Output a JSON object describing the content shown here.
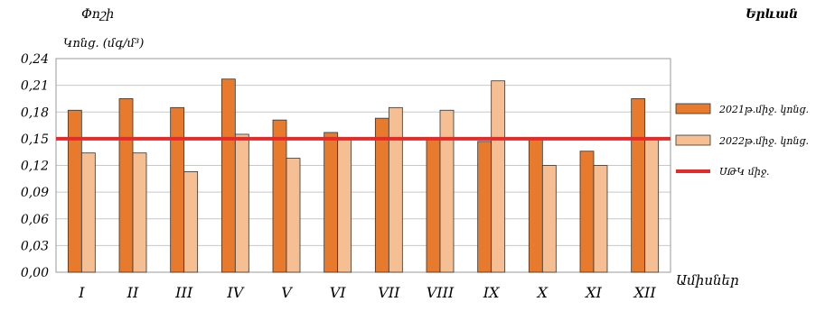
{
  "title": "Երևան",
  "ylabel_line1": "Փոշի",
  "ylabel_line2": "Կոնց. (մգ/մ³)",
  "xlabel": "Ամիսներ",
  "colors": {
    "series_2021": "#E87A2E",
    "series_2022": "#F6BE93",
    "threshold": "#E52A2A",
    "grid": "#C8C8C8"
  },
  "chart_data": {
    "type": "bar",
    "title": "Երևան",
    "xlabel": "Ամիսներ",
    "ylabel": "Փոշի Կոնց. (մգ/մ³)",
    "ylim": [
      0,
      0.24
    ],
    "yticks": [
      "0,00",
      "0,03",
      "0,06",
      "0,09",
      "0,12",
      "0,15",
      "0,18",
      "0,21",
      "0,24"
    ],
    "grid": true,
    "legend_position": "right",
    "categories": [
      "I",
      "II",
      "III",
      "IV",
      "V",
      "VI",
      "VII",
      "VIII",
      "IX",
      "X",
      "XI",
      "XII"
    ],
    "series": [
      {
        "name": "2021թ.միջ. կոնց.",
        "values": [
          0.182,
          0.195,
          0.185,
          0.217,
          0.171,
          0.157,
          0.173,
          0.15,
          0.147,
          0.15,
          0.136,
          0.195
        ]
      },
      {
        "name": "2022թ.միջ. կոնց.",
        "values": [
          0.134,
          0.134,
          0.113,
          0.155,
          0.128,
          0.15,
          0.185,
          0.182,
          0.215,
          0.12,
          0.12,
          0.15
        ]
      }
    ],
    "reference_line": {
      "name": "ՍԹԿ միջ.",
      "value": 0.15
    }
  }
}
